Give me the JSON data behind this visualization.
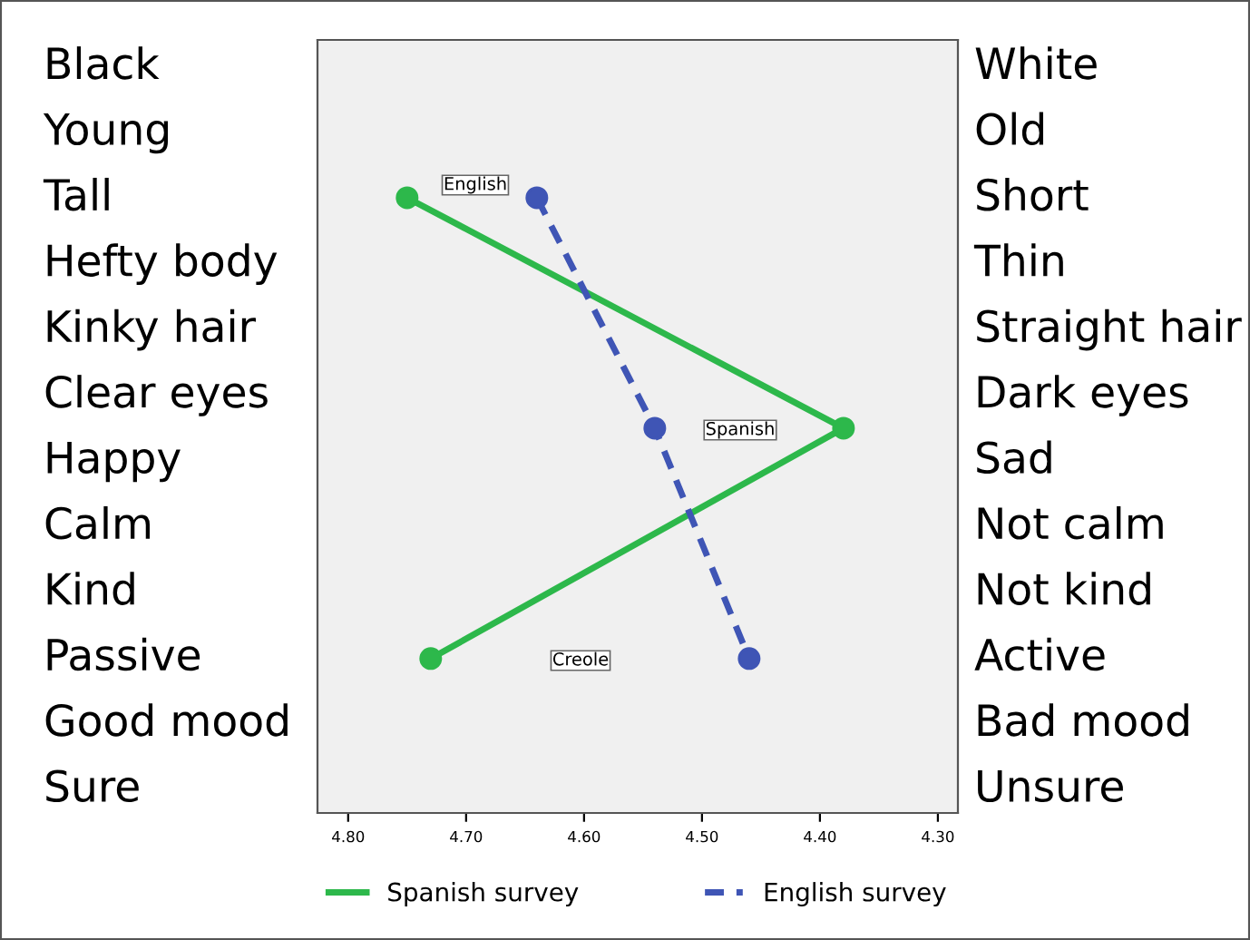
{
  "chart_data": {
    "type": "line",
    "orientation": "horizontal",
    "categories": [
      null,
      null,
      null
    ],
    "xlim": [
      4.826,
      4.283
    ],
    "xticks": [
      {
        "value": 4.8,
        "label": "4.80"
      },
      {
        "value": 4.7,
        "label": "4.70"
      },
      {
        "value": 4.6,
        "label": "4.60"
      },
      {
        "value": 4.5,
        "label": "4.50"
      },
      {
        "value": 4.4,
        "label": "4.40"
      },
      {
        "value": 4.3,
        "label": "4.30"
      }
    ],
    "series": [
      {
        "name": "Spanish survey",
        "color": "#2db84b",
        "line_style": "solid",
        "values": [
          4.75,
          4.38,
          4.73
        ]
      },
      {
        "name": "English survey",
        "color": "#3f55b5",
        "line_style": "dashed",
        "values": [
          4.64,
          4.54,
          4.46
        ]
      }
    ],
    "marker": "circle",
    "grid": false,
    "legend": "bottom",
    "annotations": [
      "English",
      "Spanish",
      "Creole",
      "Black",
      "Young",
      "Tall",
      "Hefty body",
      "Kinky hair",
      "Clear eyes",
      "Happy",
      "Calm",
      "Kind",
      "Passive",
      "Good mood",
      "Sure",
      "White",
      "Old",
      "Short",
      "Thin",
      "Straight hair",
      "Dark eyes",
      "Sad",
      "Not calm",
      "Not kind",
      "Active",
      "Bad mood",
      "Unsure"
    ]
  }
}
